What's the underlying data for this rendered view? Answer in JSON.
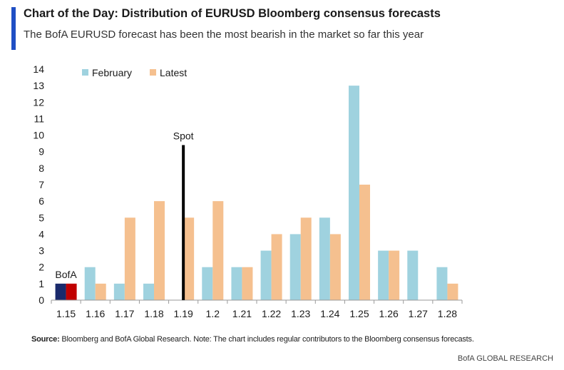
{
  "title": "Chart of the Day: Distribution of EURUSD Bloomberg consensus forecasts",
  "subtitle": "The BofA EURUSD forecast has been the most bearish in the market so far this year",
  "source_label": "Source:",
  "source_text": "Bloomberg and BofA Global Research. Note: The chart includes regular contributors to the Bloomberg consensus forecasts.",
  "brand": "BofA GLOBAL RESEARCH",
  "colors": {
    "february": "#9fd2df",
    "latest": "#f5c08f",
    "bofa_feb": "#1a2a6c",
    "bofa_latest": "#c00000",
    "spot": "#000000",
    "accent": "#1f4fc4"
  },
  "chart_data": {
    "type": "bar",
    "categories": [
      "1.15",
      "1.16",
      "1.17",
      "1.18",
      "1.19",
      "1.2",
      "1.21",
      "1.22",
      "1.23",
      "1.24",
      "1.25",
      "1.26",
      "1.27",
      "1.28"
    ],
    "series": [
      {
        "name": "February",
        "values": [
          1,
          2,
          1,
          1,
          0,
          2,
          2,
          3,
          4,
          5,
          13,
          3,
          3,
          2
        ]
      },
      {
        "name": "Latest",
        "values": [
          1,
          1,
          5,
          6,
          5,
          6,
          2,
          4,
          5,
          4,
          7,
          3,
          0,
          1
        ]
      }
    ],
    "ylim": [
      0,
      14
    ],
    "yticks": [
      0,
      1,
      2,
      3,
      4,
      5,
      6,
      7,
      8,
      9,
      10,
      11,
      12,
      13,
      14
    ],
    "annotations": [
      {
        "text": "BofA",
        "category": "1.15"
      },
      {
        "text": "Spot",
        "x": 1.19,
        "y": 9.4
      }
    ],
    "legend_position": "top-left",
    "grid": false
  }
}
